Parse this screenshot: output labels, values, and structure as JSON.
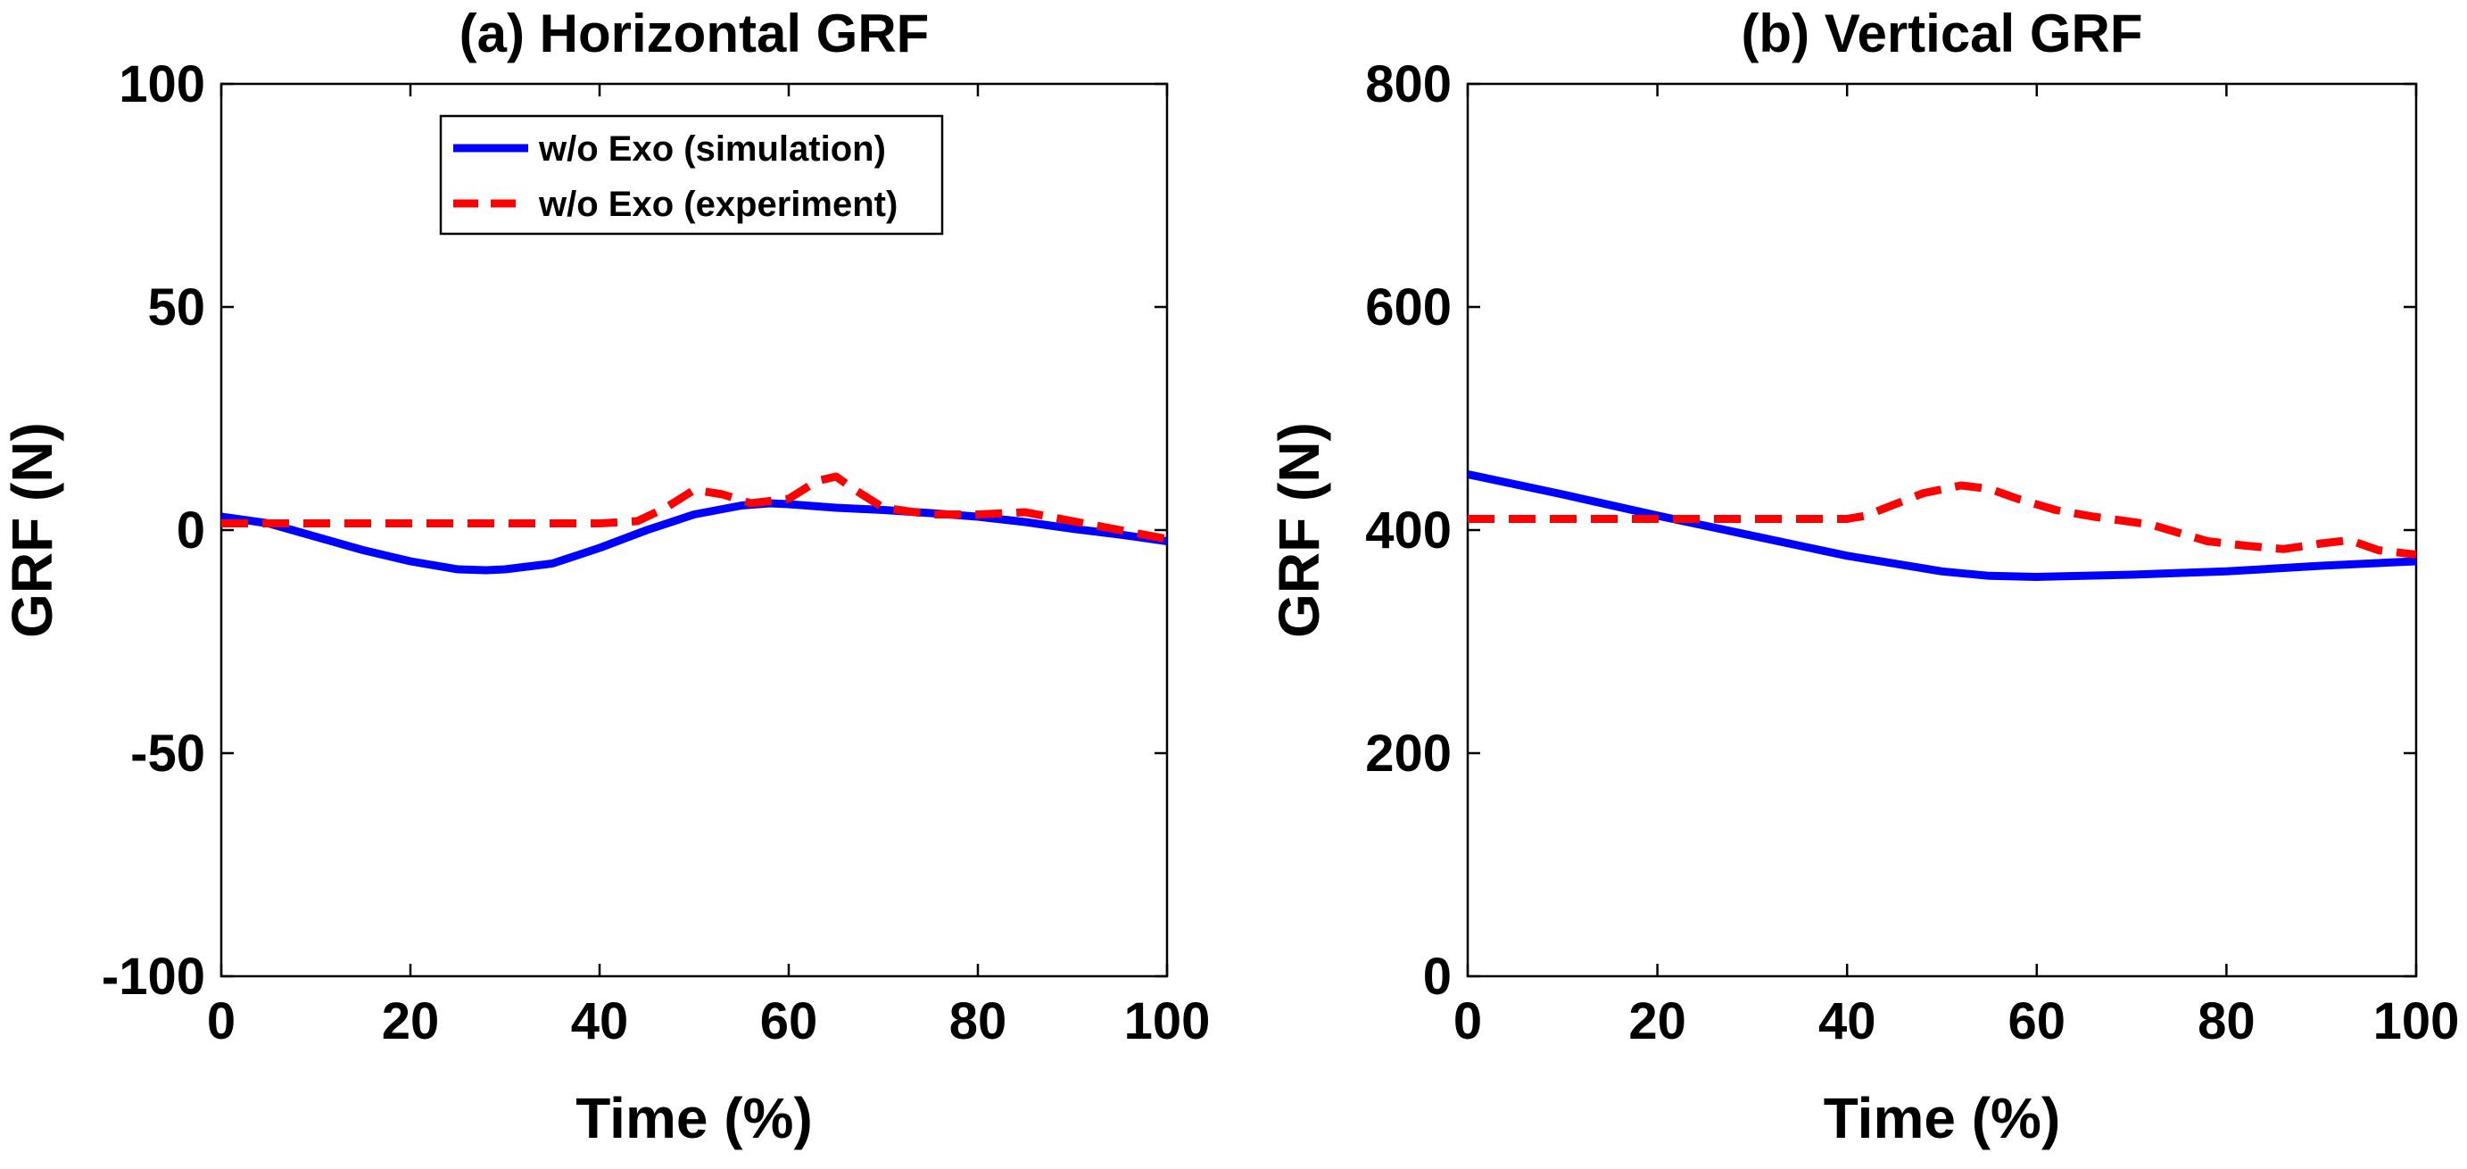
{
  "chart_data": [
    {
      "type": "line",
      "title": "(a) Horizontal GRF",
      "xlabel": "Time (%)",
      "ylabel": "GRF (N)",
      "xlim": [
        0,
        100
      ],
      "ylim": [
        -100,
        100
      ],
      "xticks": [
        0,
        20,
        40,
        60,
        80,
        100
      ],
      "yticks": [
        -100,
        -50,
        0,
        50,
        100
      ],
      "xtick_labels": [
        "0",
        "20",
        "40",
        "60",
        "80",
        "100"
      ],
      "ytick_labels": [
        "-100",
        "-50",
        "0",
        "50",
        "100"
      ],
      "grid": false,
      "legend": {
        "position": "top-center",
        "entries": [
          "w/o Exo (simulation)",
          "w/o Exo (experiment)"
        ]
      },
      "series": [
        {
          "name": "w/o Exo (simulation)",
          "color": "#0000FF",
          "style": "solid",
          "x": [
            0,
            5,
            10,
            15,
            20,
            25,
            28,
            30,
            35,
            40,
            45,
            50,
            55,
            58,
            60,
            65,
            70,
            75,
            80,
            85,
            90,
            95,
            100
          ],
          "y": [
            3,
            1.5,
            -1.5,
            -4.5,
            -7,
            -8.8,
            -9,
            -8.8,
            -7.5,
            -4,
            0,
            3.5,
            5.5,
            6,
            5.8,
            5,
            4.5,
            3.8,
            3,
            1.8,
            0.3,
            -1,
            -2.5
          ]
        },
        {
          "name": "w/o Exo (experiment)",
          "color": "#FF0000",
          "style": "dashed",
          "x": [
            0,
            5,
            10,
            20,
            30,
            40,
            44,
            47,
            50,
            53,
            56,
            60,
            63,
            65,
            67,
            70,
            75,
            80,
            85,
            90,
            95,
            100
          ],
          "y": [
            1.5,
            1.5,
            1.5,
            1.5,
            1.5,
            1.5,
            2,
            5,
            9,
            8,
            6,
            7,
            11,
            12,
            9,
            5,
            3.5,
            3.5,
            4,
            2,
            0,
            -2
          ]
        }
      ]
    },
    {
      "type": "line",
      "title": "(b) Vertical GRF",
      "xlabel": "Time (%)",
      "ylabel": "GRF (N)",
      "xlim": [
        0,
        100
      ],
      "ylim": [
        0,
        800
      ],
      "xticks": [
        0,
        20,
        40,
        60,
        80,
        100
      ],
      "yticks": [
        0,
        200,
        400,
        600,
        800
      ],
      "xtick_labels": [
        "0",
        "20",
        "40",
        "60",
        "80",
        "100"
      ],
      "ytick_labels": [
        "0",
        "200",
        "400",
        "600",
        "800"
      ],
      "grid": false,
      "series": [
        {
          "name": "w/o Exo (simulation)",
          "color": "#0000FF",
          "style": "solid",
          "x": [
            0,
            10,
            20,
            30,
            40,
            50,
            55,
            60,
            70,
            80,
            90,
            100
          ],
          "y": [
            450,
            432,
            413,
            395,
            377,
            363,
            359,
            358,
            360,
            363,
            368,
            372
          ]
        },
        {
          "name": "w/o Exo (experiment)",
          "color": "#FF0000",
          "style": "dashed",
          "x": [
            0,
            10,
            20,
            30,
            40,
            42,
            45,
            48,
            52,
            55,
            58,
            62,
            66,
            72,
            78,
            82,
            86,
            90,
            93,
            96,
            100
          ],
          "y": [
            410,
            410,
            410,
            410,
            410,
            413,
            423,
            433,
            440,
            437,
            428,
            418,
            412,
            405,
            390,
            386,
            383,
            388,
            391,
            382,
            378
          ]
        }
      ]
    }
  ]
}
